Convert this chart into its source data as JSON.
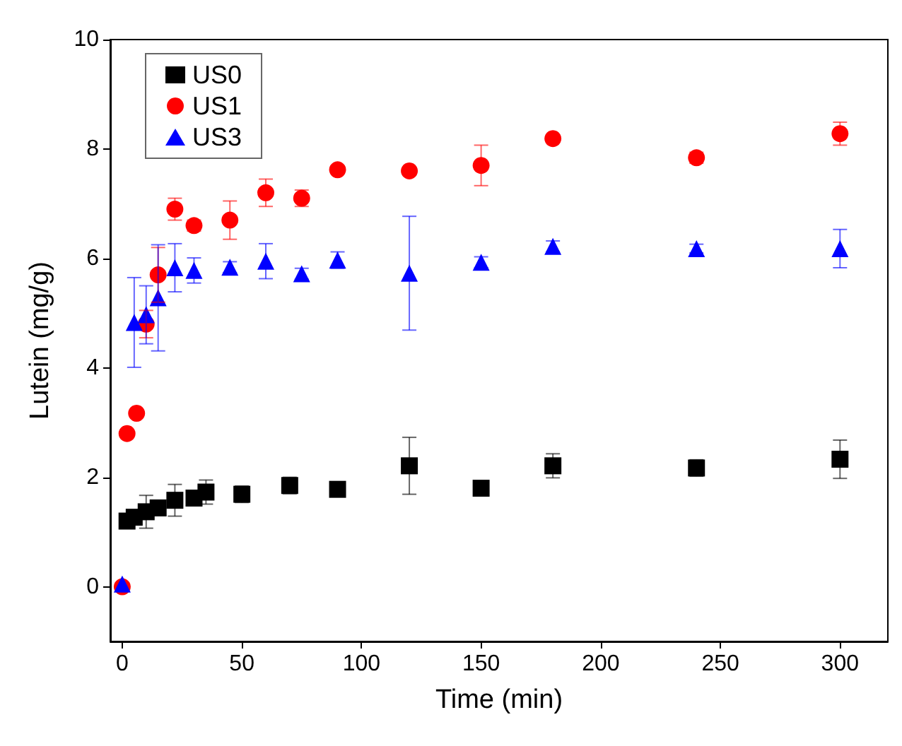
{
  "chart_data": {
    "type": "scatter",
    "xlabel": "Time (min)",
    "ylabel": "Lutein (mg/g)",
    "xlim": [
      -5,
      320
    ],
    "ylim": [
      -1,
      10
    ],
    "xticks": [
      0,
      50,
      100,
      150,
      200,
      250,
      300
    ],
    "yticks": [
      0,
      2,
      4,
      6,
      8,
      10
    ],
    "grid": false,
    "legend": "top left",
    "series": [
      {
        "name": "US0",
        "color": "#000000",
        "marker": "square",
        "x": [
          2,
          5,
          10,
          15,
          22,
          30,
          35,
          50,
          70,
          90,
          120,
          150,
          180,
          240,
          300
        ],
        "values": [
          1.2,
          1.27,
          1.37,
          1.44,
          1.58,
          1.62,
          1.73,
          1.69,
          1.85,
          1.78,
          2.21,
          1.8,
          2.21,
          2.17,
          2.33
        ],
        "errors": [
          0.1,
          0.12,
          0.3,
          0.1,
          0.29,
          0.1,
          0.22,
          0.15,
          0.15,
          null,
          0.52,
          null,
          0.22,
          0.15,
          0.35
        ]
      },
      {
        "name": "US1",
        "color": "#ff0000",
        "marker": "circle",
        "x": [
          0,
          2,
          6,
          10,
          15,
          22,
          30,
          45,
          60,
          75,
          90,
          120,
          150,
          180,
          240,
          300
        ],
        "values": [
          0,
          2.8,
          3.17,
          4.8,
          5.7,
          6.9,
          6.6,
          6.7,
          7.2,
          7.1,
          7.62,
          7.6,
          7.7,
          8.19,
          7.84,
          8.28
        ],
        "errors": [
          null,
          null,
          null,
          0.25,
          0.5,
          0.2,
          0.1,
          0.35,
          0.25,
          0.15,
          null,
          null,
          0.37,
          null,
          0.1,
          0.21
        ]
      },
      {
        "name": "US3",
        "color": "#0000ff",
        "marker": "triangle",
        "x": [
          0,
          5,
          10,
          15,
          22,
          30,
          45,
          60,
          75,
          90,
          120,
          150,
          180,
          240,
          300
        ],
        "values": [
          0.05,
          4.83,
          4.97,
          5.28,
          5.83,
          5.78,
          5.84,
          5.95,
          5.72,
          5.97,
          5.73,
          5.93,
          6.22,
          6.18,
          6.18
        ],
        "errors": [
          null,
          0.82,
          0.53,
          0.97,
          0.44,
          0.23,
          0.1,
          0.32,
          0.1,
          0.15,
          1.04,
          0.1,
          0.1,
          0.08,
          0.35
        ]
      }
    ]
  }
}
